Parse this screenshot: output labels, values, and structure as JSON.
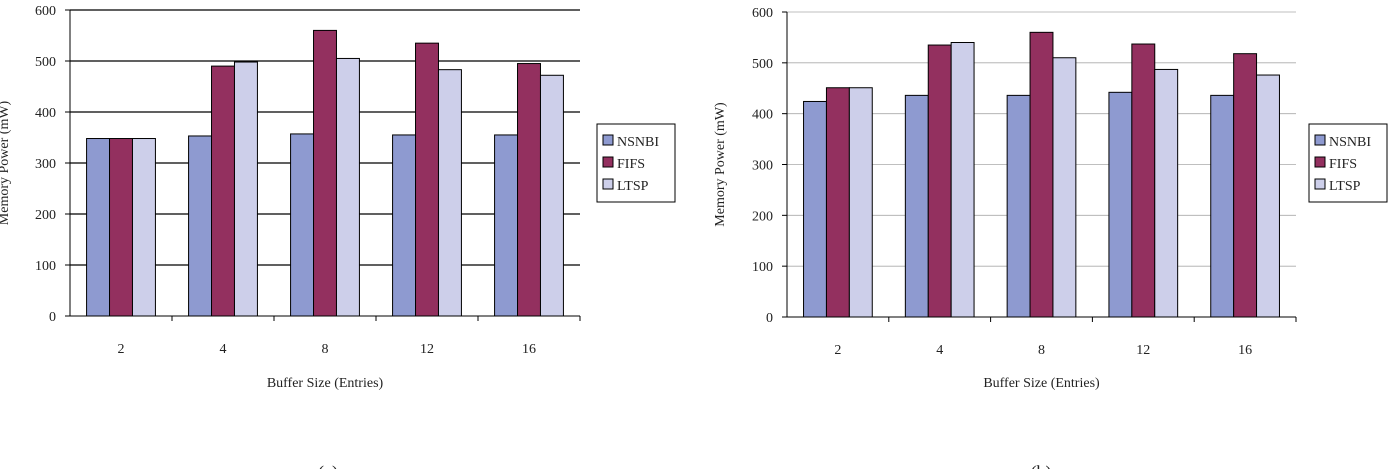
{
  "chart_data": [
    {
      "type": "bar",
      "caption": "(a)",
      "xlabel": "Buffer Size (Entries)",
      "ylabel": "Memory Power (mW)",
      "ylim": [
        0,
        600
      ],
      "yticks": [
        0,
        100,
        200,
        300,
        400,
        500,
        600
      ],
      "grid": true,
      "legend_position": "right",
      "categories": [
        "2",
        "4",
        "8",
        "12",
        "16"
      ],
      "series": [
        {
          "name": "NSNBI",
          "color": "#8E9AD0",
          "values": [
            348,
            353,
            357,
            355,
            355
          ]
        },
        {
          "name": "FIFS",
          "color": "#93305F",
          "values": [
            348,
            490,
            560,
            535,
            495
          ]
        },
        {
          "name": "LTSP",
          "color": "#CDCFEA",
          "values": [
            348,
            498,
            505,
            483,
            472
          ]
        }
      ]
    },
    {
      "type": "bar",
      "caption": "(b)",
      "xlabel": "Buffer Size (Entries)",
      "ylabel": "Memory Power (mW)",
      "ylim": [
        0,
        600
      ],
      "yticks": [
        0,
        100,
        200,
        300,
        400,
        500,
        600
      ],
      "grid": true,
      "legend_position": "right",
      "categories": [
        "2",
        "4",
        "8",
        "12",
        "16"
      ],
      "series": [
        {
          "name": "NSNBI",
          "color": "#8E9AD0",
          "values": [
            424,
            436,
            436,
            442,
            436
          ]
        },
        {
          "name": "FIFS",
          "color": "#93305F",
          "values": [
            451,
            535,
            560,
            537,
            518
          ]
        },
        {
          "name": "LTSP",
          "color": "#CDCFEA",
          "values": [
            451,
            540,
            510,
            487,
            476
          ]
        }
      ]
    }
  ]
}
